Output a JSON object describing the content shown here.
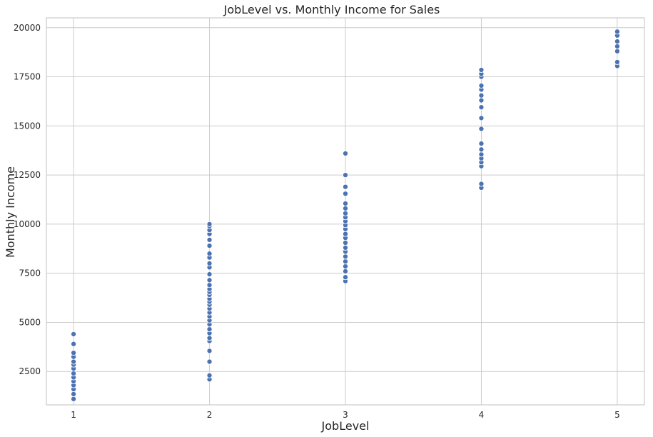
{
  "chart_data": {
    "type": "scatter",
    "title": "JobLevel vs. Monthly Income for Sales",
    "xlabel": "JobLevel",
    "ylabel": "Monthly Income",
    "xlim": [
      0.8,
      5.2
    ],
    "ylim": [
      800,
      20500
    ],
    "xticks": [
      1,
      2,
      3,
      4,
      5
    ],
    "yticks": [
      2500,
      5000,
      7500,
      10000,
      12500,
      15000,
      17500,
      20000
    ],
    "grid": true,
    "legend": "none",
    "point_color": "#4c72b0",
    "series": [
      {
        "points": [
          [
            1,
            1100
          ],
          [
            1,
            1350
          ],
          [
            1,
            1600
          ],
          [
            1,
            1800
          ],
          [
            1,
            2000
          ],
          [
            1,
            2200
          ],
          [
            1,
            2400
          ],
          [
            1,
            2650
          ],
          [
            1,
            2850
          ],
          [
            1,
            3000
          ],
          [
            1,
            3250
          ],
          [
            1,
            3450
          ],
          [
            1,
            3900
          ],
          [
            1,
            4400
          ],
          [
            2,
            2100
          ],
          [
            2,
            2300
          ],
          [
            2,
            3000
          ],
          [
            2,
            3550
          ],
          [
            2,
            4050
          ],
          [
            2,
            4200
          ],
          [
            2,
            4450
          ],
          [
            2,
            4650
          ],
          [
            2,
            4900
          ],
          [
            2,
            5100
          ],
          [
            2,
            5300
          ],
          [
            2,
            5500
          ],
          [
            2,
            5700
          ],
          [
            2,
            5900
          ],
          [
            2,
            6050
          ],
          [
            2,
            6200
          ],
          [
            2,
            6400
          ],
          [
            2,
            6550
          ],
          [
            2,
            6700
          ],
          [
            2,
            6900
          ],
          [
            2,
            7150
          ],
          [
            2,
            7450
          ],
          [
            2,
            7800
          ],
          [
            2,
            8000
          ],
          [
            2,
            8300
          ],
          [
            2,
            8500
          ],
          [
            2,
            8900
          ],
          [
            2,
            9200
          ],
          [
            2,
            9500
          ],
          [
            2,
            9700
          ],
          [
            2,
            9900
          ],
          [
            2,
            10000
          ],
          [
            3,
            7100
          ],
          [
            3,
            7300
          ],
          [
            3,
            7600
          ],
          [
            3,
            7850
          ],
          [
            3,
            8100
          ],
          [
            3,
            8350
          ],
          [
            3,
            8600
          ],
          [
            3,
            8800
          ],
          [
            3,
            9050
          ],
          [
            3,
            9300
          ],
          [
            3,
            9500
          ],
          [
            3,
            9750
          ],
          [
            3,
            9950
          ],
          [
            3,
            10150
          ],
          [
            3,
            10350
          ],
          [
            3,
            10550
          ],
          [
            3,
            10800
          ],
          [
            3,
            11050
          ],
          [
            3,
            11550
          ],
          [
            3,
            11900
          ],
          [
            3,
            12500
          ],
          [
            3,
            13600
          ],
          [
            4,
            11850
          ],
          [
            4,
            12050
          ],
          [
            4,
            12950
          ],
          [
            4,
            13150
          ],
          [
            4,
            13350
          ],
          [
            4,
            13550
          ],
          [
            4,
            13800
          ],
          [
            4,
            14100
          ],
          [
            4,
            14850
          ],
          [
            4,
            15400
          ],
          [
            4,
            15950
          ],
          [
            4,
            16300
          ],
          [
            4,
            16550
          ],
          [
            4,
            16850
          ],
          [
            4,
            17050
          ],
          [
            4,
            17500
          ],
          [
            4,
            17650
          ],
          [
            4,
            17850
          ],
          [
            5,
            18050
          ],
          [
            5,
            18250
          ],
          [
            5,
            18800
          ],
          [
            5,
            19050
          ],
          [
            5,
            19300
          ],
          [
            5,
            19600
          ],
          [
            5,
            19800
          ]
        ]
      }
    ]
  }
}
